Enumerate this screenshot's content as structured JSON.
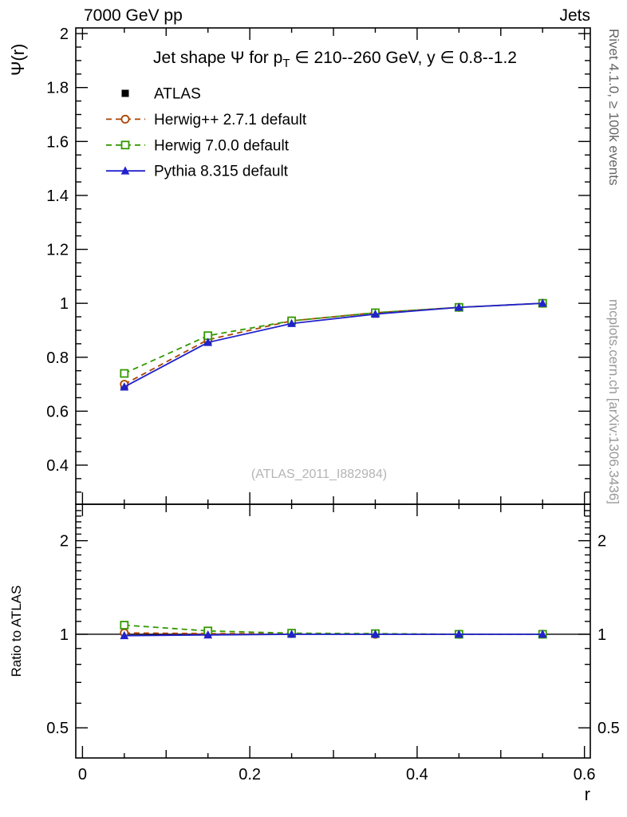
{
  "header": {
    "left": "7000 GeV pp",
    "right": "Jets"
  },
  "side_texts": {
    "rivet": "Rivet 4.1.0, ≥ 100k events",
    "arxiv": "mcplots.cern.ch [arXiv:1306.3436]"
  },
  "watermark": "(ATLAS_2011_I882984)",
  "chart_data": {
    "type": "line",
    "title": "Jet shape Ψ for p_T ∈ 210--260 GeV, y ∈ 0.8--1.2",
    "title_parts": {
      "pre": "Jet shape Ψ for p",
      "sub": "T",
      "post": " ∈ 210--260 GeV, y ∈ 0.8--1.2"
    },
    "xlabel": "r",
    "ylabel_main": "Ψ(r)",
    "ylabel_ratio": "Ratio to ATLAS",
    "xlim": [
      -0.008,
      0.607
    ],
    "ylim_main": [
      0.255,
      2.021
    ],
    "ylim_ratio": [
      0.4,
      2.62
    ],
    "ratio_scale": "log",
    "x_major_ticks": [
      0,
      0.2,
      0.4,
      0.6
    ],
    "x_major_labels": [
      "0",
      "0.2",
      "0.4",
      "0.6"
    ],
    "y_main_major_ticks": [
      0.4,
      0.6,
      0.8,
      1.0,
      1.2,
      1.4,
      1.6,
      1.8,
      2.0
    ],
    "y_main_major_labels": [
      "0.4",
      "0.6",
      "0.8",
      "1",
      "1.2",
      "1.4",
      "1.6",
      "1.8",
      "2"
    ],
    "y_ratio_major_ticks": [
      0.5,
      1,
      2
    ],
    "y_ratio_major_labels": [
      "0.5",
      "1",
      "2"
    ],
    "legend_position": "top-left",
    "grid": false,
    "x": [
      0.05,
      0.15,
      0.25,
      0.35,
      0.45,
      0.55
    ],
    "series": [
      {
        "name": "ATLAS",
        "color": "#000000",
        "marker": "filled-square",
        "line": "none",
        "values": [
          0.69,
          0.86,
          0.93,
          0.96,
          0.985,
          1.0
        ],
        "ratio": null
      },
      {
        "name": "Herwig++ 2.7.1 default",
        "color": "#aa4400",
        "marker": "open-circle",
        "line": "dashed",
        "values": [
          0.7,
          0.865,
          0.935,
          0.965,
          0.985,
          1.0
        ],
        "ratio": [
          1.01,
          1.005,
          1.005,
          1.0,
          1.0,
          1.0
        ]
      },
      {
        "name": "Herwig 7.0.0 default",
        "color": "#339900",
        "marker": "open-square",
        "line": "dashed",
        "values": [
          0.74,
          0.88,
          0.935,
          0.965,
          0.985,
          1.0
        ],
        "ratio": [
          1.07,
          1.025,
          1.008,
          1.005,
          1.0,
          1.0
        ]
      },
      {
        "name": "Pythia 8.315 default",
        "color": "#2222cc",
        "marker": "filled-triangle",
        "line": "solid",
        "values": [
          0.69,
          0.855,
          0.925,
          0.96,
          0.985,
          1.0
        ],
        "ratio": [
          0.99,
          0.995,
          1.0,
          1.0,
          1.0,
          1.0
        ]
      }
    ],
    "ratio_reference": 1.0
  }
}
